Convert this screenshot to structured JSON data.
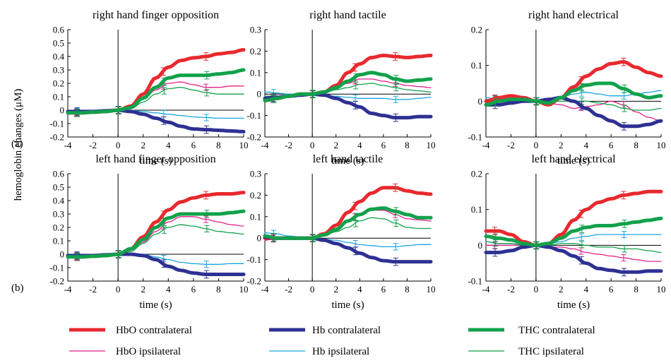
{
  "figure": {
    "ylabel": "hemoglobin changes (μM)",
    "xlabel": "time (s)",
    "row_labels": [
      "(a)",
      "(b)"
    ]
  },
  "legend": [
    {
      "label": "HbO contralateral",
      "color": "#e8292f",
      "width": 5
    },
    {
      "label": "Hb contralateral",
      "color": "#2e3192",
      "width": 5
    },
    {
      "label": "THC contralateral",
      "color": "#12a14b",
      "width": 5
    },
    {
      "label": "HbO ipsilateral",
      "color": "#e4208c",
      "width": 1.3
    },
    {
      "label": "Hb ipsilateral",
      "color": "#19a6de",
      "width": 1.3
    },
    {
      "label": "THC ipsilateral",
      "color": "#12a14b",
      "width": 1.3
    }
  ],
  "chart_data": [
    {
      "type": "line",
      "title": "right hand finger opposition",
      "xlim": [
        -4,
        10
      ],
      "ylim": [
        -0.2,
        0.6
      ],
      "yticks": [
        -0.2,
        -0.1,
        0,
        0.1,
        0.2,
        0.3,
        0.4,
        0.5,
        0.6
      ],
      "xticks": [
        -4,
        -2,
        0,
        2,
        4,
        6,
        8,
        10
      ],
      "x": [
        -4,
        -3,
        -2,
        -1,
        0,
        1,
        2,
        3,
        4,
        5,
        6,
        7,
        8,
        9,
        10
      ],
      "series": [
        {
          "name": "HbO contralateral",
          "values": [
            -0.02,
            -0.02,
            -0.015,
            -0.01,
            0,
            0.03,
            0.12,
            0.24,
            0.32,
            0.37,
            0.39,
            0.4,
            0.42,
            0.43,
            0.45
          ]
        },
        {
          "name": "Hb contralateral",
          "values": [
            -0.01,
            -0.01,
            -0.01,
            -0.005,
            0,
            -0.01,
            -0.03,
            -0.06,
            -0.09,
            -0.12,
            -0.14,
            -0.145,
            -0.15,
            -0.155,
            -0.16
          ]
        },
        {
          "name": "THC contralateral",
          "values": [
            -0.02,
            -0.02,
            -0.015,
            -0.01,
            0,
            0.02,
            0.09,
            0.17,
            0.24,
            0.26,
            0.26,
            0.26,
            0.27,
            0.28,
            0.3
          ]
        },
        {
          "name": "HbO ipsilateral",
          "values": [
            -0.02,
            -0.02,
            -0.015,
            -0.01,
            0,
            0.02,
            0.08,
            0.15,
            0.2,
            0.21,
            0.19,
            0.17,
            0.17,
            0.18,
            0.18
          ]
        },
        {
          "name": "Hb ipsilateral",
          "values": [
            -0.01,
            -0.01,
            -0.01,
            -0.005,
            0,
            0,
            -0.01,
            -0.02,
            -0.03,
            -0.04,
            -0.05,
            -0.055,
            -0.06,
            -0.06,
            -0.06
          ]
        },
        {
          "name": "THC ipsilateral",
          "values": [
            -0.02,
            -0.02,
            -0.015,
            -0.01,
            0,
            0.01,
            0.06,
            0.12,
            0.16,
            0.17,
            0.15,
            0.13,
            0.12,
            0.12,
            0.12
          ]
        }
      ]
    },
    {
      "type": "line",
      "title": "right hand tactile",
      "xlim": [
        -4,
        10
      ],
      "ylim": [
        -0.2,
        0.3
      ],
      "yticks": [
        -0.2,
        -0.1,
        0,
        0.1,
        0.2,
        0.3
      ],
      "xticks": [
        -4,
        -2,
        0,
        2,
        4,
        6,
        8,
        10
      ],
      "x": [
        -4,
        -3,
        -2,
        -1,
        0,
        1,
        2,
        3,
        4,
        5,
        6,
        7,
        8,
        9,
        10
      ],
      "series": [
        {
          "name": "HbO contralateral",
          "values": [
            -0.03,
            -0.02,
            -0.01,
            0,
            0,
            0.01,
            0.04,
            0.1,
            0.14,
            0.17,
            0.18,
            0.175,
            0.17,
            0.175,
            0.18
          ]
        },
        {
          "name": "Hb contralateral",
          "values": [
            -0.02,
            -0.015,
            -0.01,
            -0.005,
            0,
            -0.005,
            -0.02,
            -0.04,
            -0.06,
            -0.09,
            -0.1,
            -0.11,
            -0.11,
            -0.105,
            -0.105
          ]
        },
        {
          "name": "THC contralateral",
          "values": [
            -0.03,
            -0.02,
            -0.01,
            0,
            0,
            0.01,
            0.03,
            0.06,
            0.09,
            0.1,
            0.09,
            0.07,
            0.06,
            0.065,
            0.07
          ]
        },
        {
          "name": "HbO ipsilateral",
          "values": [
            -0.02,
            -0.02,
            -0.01,
            0,
            0,
            0.01,
            0.03,
            0.05,
            0.07,
            0.07,
            0.06,
            0.05,
            0.04,
            0.035,
            0.03
          ]
        },
        {
          "name": "Hb ipsilateral",
          "values": [
            0.01,
            0.005,
            0,
            0,
            0,
            -0.005,
            -0.01,
            -0.015,
            -0.02,
            -0.02,
            -0.02,
            -0.025,
            -0.025,
            -0.02,
            -0.015
          ]
        },
        {
          "name": "THC ipsilateral",
          "values": [
            -0.01,
            -0.01,
            -0.01,
            0,
            0,
            0.005,
            0.02,
            0.03,
            0.045,
            0.05,
            0.04,
            0.03,
            0.02,
            0.015,
            0.01
          ]
        }
      ]
    },
    {
      "type": "line",
      "title": "right hand electrical",
      "xlim": [
        -4,
        10
      ],
      "ylim": [
        -0.1,
        0.2
      ],
      "yticks": [
        -0.1,
        0,
        0.1,
        0.2
      ],
      "xticks": [
        -4,
        -2,
        0,
        2,
        4,
        6,
        8,
        10
      ],
      "x": [
        -4,
        -3,
        -2,
        -1,
        0,
        1,
        2,
        3,
        4,
        5,
        6,
        7,
        8,
        9,
        10
      ],
      "series": [
        {
          "name": "HbO contralateral",
          "values": [
            0,
            0.01,
            0.015,
            0.01,
            0,
            -0.01,
            0.01,
            0.04,
            0.07,
            0.09,
            0.105,
            0.11,
            0.095,
            0.08,
            0.07
          ]
        },
        {
          "name": "Hb contralateral",
          "values": [
            -0.01,
            -0.01,
            -0.005,
            0,
            0,
            0.005,
            0.01,
            0,
            -0.02,
            -0.04,
            -0.055,
            -0.07,
            -0.07,
            -0.065,
            -0.055
          ]
        },
        {
          "name": "THC contralateral",
          "values": [
            -0.01,
            0,
            0.005,
            0.005,
            0,
            -0.005,
            0.01,
            0.03,
            0.045,
            0.05,
            0.05,
            0.035,
            0.02,
            0.01,
            0.015
          ]
        },
        {
          "name": "HbO ipsilateral",
          "values": [
            0,
            0,
            0.005,
            0.005,
            0,
            -0.005,
            -0.01,
            -0.02,
            -0.015,
            -0.01,
            0,
            -0.01,
            -0.03,
            -0.045,
            -0.055
          ]
        },
        {
          "name": "Hb ipsilateral",
          "values": [
            0.01,
            0.005,
            0,
            0,
            0,
            0.005,
            0.01,
            0.02,
            0.025,
            0.02,
            0.015,
            0.015,
            0.02,
            0.025,
            0.03
          ]
        },
        {
          "name": "THC ipsilateral",
          "values": [
            0.005,
            0.005,
            0.005,
            0.005,
            0,
            0,
            0,
            0,
            0,
            -0.005,
            -0.01,
            -0.02,
            -0.025,
            -0.025,
            -0.02
          ]
        }
      ]
    },
    {
      "type": "line",
      "title": "left hand finger opposition",
      "xlim": [
        -4,
        10
      ],
      "ylim": [
        -0.2,
        0.6
      ],
      "yticks": [
        -0.2,
        -0.1,
        0,
        0.1,
        0.2,
        0.3,
        0.4,
        0.5,
        0.6
      ],
      "xticks": [
        -4,
        -2,
        0,
        2,
        4,
        6,
        8,
        10
      ],
      "x": [
        -4,
        -3,
        -2,
        -1,
        0,
        1,
        2,
        3,
        4,
        5,
        6,
        7,
        8,
        9,
        10
      ],
      "series": [
        {
          "name": "HbO contralateral",
          "values": [
            -0.01,
            -0.02,
            -0.015,
            -0.01,
            0,
            0.04,
            0.13,
            0.24,
            0.33,
            0.39,
            0.42,
            0.44,
            0.45,
            0.45,
            0.46
          ]
        },
        {
          "name": "Hb contralateral",
          "values": [
            -0.01,
            -0.01,
            -0.01,
            -0.005,
            0,
            0,
            -0.01,
            -0.04,
            -0.09,
            -0.12,
            -0.14,
            -0.15,
            -0.15,
            -0.15,
            -0.15
          ]
        },
        {
          "name": "THC contralateral",
          "values": [
            -0.02,
            -0.02,
            -0.015,
            -0.01,
            0,
            0.04,
            0.11,
            0.2,
            0.27,
            0.3,
            0.3,
            0.3,
            0.3,
            0.31,
            0.32
          ]
        },
        {
          "name": "HbO ipsilateral",
          "values": [
            -0.02,
            -0.02,
            -0.015,
            -0.01,
            0,
            0.03,
            0.09,
            0.17,
            0.24,
            0.28,
            0.28,
            0.26,
            0.24,
            0.22,
            0.21
          ]
        },
        {
          "name": "Hb ipsilateral",
          "values": [
            -0.01,
            -0.01,
            -0.01,
            -0.005,
            0,
            0.005,
            0,
            -0.02,
            -0.04,
            -0.06,
            -0.07,
            -0.075,
            -0.075,
            -0.07,
            -0.07
          ]
        },
        {
          "name": "THC ipsilateral",
          "values": [
            -0.02,
            -0.02,
            -0.015,
            -0.01,
            0,
            0.02,
            0.08,
            0.15,
            0.2,
            0.22,
            0.21,
            0.19,
            0.17,
            0.16,
            0.15
          ]
        }
      ]
    },
    {
      "type": "line",
      "title": "left hand tactile",
      "xlim": [
        -4,
        10
      ],
      "ylim": [
        -0.2,
        0.3
      ],
      "yticks": [
        -0.2,
        -0.1,
        0,
        0.1,
        0.2,
        0.3
      ],
      "xticks": [
        -4,
        -2,
        0,
        2,
        4,
        6,
        8,
        10
      ],
      "x": [
        -4,
        -3,
        -2,
        -1,
        0,
        1,
        2,
        3,
        4,
        5,
        6,
        7,
        8,
        9,
        10
      ],
      "series": [
        {
          "name": "HbO contralateral",
          "values": [
            0,
            0,
            0,
            0,
            0,
            0.02,
            0.06,
            0.12,
            0.17,
            0.21,
            0.235,
            0.235,
            0.22,
            0.21,
            0.205
          ]
        },
        {
          "name": "Hb contralateral",
          "values": [
            0.005,
            0,
            0,
            0,
            0,
            -0.01,
            -0.025,
            -0.045,
            -0.07,
            -0.09,
            -0.105,
            -0.11,
            -0.11,
            -0.11,
            -0.11
          ]
        },
        {
          "name": "THC contralateral",
          "values": [
            0.01,
            0,
            0,
            0,
            0,
            0.015,
            0.04,
            0.08,
            0.11,
            0.135,
            0.14,
            0.125,
            0.11,
            0.095,
            0.095
          ]
        },
        {
          "name": "HbO ipsilateral",
          "values": [
            -0.01,
            0,
            0,
            0,
            0,
            0.015,
            0.04,
            0.08,
            0.11,
            0.13,
            0.13,
            0.11,
            0.09,
            0.085,
            0.08
          ]
        },
        {
          "name": "Hb ipsilateral",
          "values": [
            0.025,
            0.02,
            0.01,
            0.005,
            0,
            -0.005,
            -0.01,
            -0.02,
            -0.03,
            -0.035,
            -0.04,
            -0.04,
            -0.035,
            -0.03,
            -0.03
          ]
        },
        {
          "name": "THC ipsilateral",
          "values": [
            0.01,
            0.005,
            0,
            0,
            0,
            0.01,
            0.03,
            0.05,
            0.08,
            0.095,
            0.09,
            0.07,
            0.05,
            0.045,
            0.045
          ]
        }
      ]
    },
    {
      "type": "line",
      "title": "left hand electrical",
      "xlim": [
        -4,
        10
      ],
      "ylim": [
        -0.1,
        0.2
      ],
      "yticks": [
        -0.1,
        0,
        0.1,
        0.2
      ],
      "xticks": [
        -4,
        -2,
        0,
        2,
        4,
        6,
        8,
        10
      ],
      "x": [
        -4,
        -3,
        -2,
        -1,
        0,
        1,
        2,
        3,
        4,
        5,
        6,
        7,
        8,
        9,
        10
      ],
      "series": [
        {
          "name": "HbO contralateral",
          "values": [
            0.04,
            0.04,
            0.03,
            0.01,
            0,
            0.005,
            0.03,
            0.07,
            0.1,
            0.12,
            0.13,
            0.14,
            0.145,
            0.15,
            0.15
          ]
        },
        {
          "name": "Hb contralateral",
          "values": [
            -0.02,
            -0.02,
            -0.015,
            -0.005,
            0,
            -0.005,
            -0.015,
            -0.03,
            -0.05,
            -0.065,
            -0.07,
            -0.075,
            -0.075,
            -0.072,
            -0.072
          ]
        },
        {
          "name": "THC contralateral",
          "values": [
            0.025,
            0.02,
            0.015,
            0.005,
            0,
            0.005,
            0.02,
            0.04,
            0.05,
            0.055,
            0.055,
            0.06,
            0.065,
            0.07,
            0.075
          ]
        },
        {
          "name": "HbO ipsilateral",
          "values": [
            0,
            0,
            0,
            0,
            0,
            -0.005,
            -0.005,
            -0.01,
            -0.02,
            -0.025,
            -0.03,
            -0.035,
            -0.04,
            -0.045,
            -0.045
          ]
        },
        {
          "name": "Hb ipsilateral",
          "values": [
            0.01,
            0.005,
            0.005,
            0,
            0,
            0.005,
            0.01,
            0.02,
            0.025,
            0.03,
            0.03,
            0.03,
            0.03,
            0.03,
            0.03
          ]
        },
        {
          "name": "THC ipsilateral",
          "values": [
            0.01,
            0.005,
            0.005,
            0,
            0,
            0,
            0.005,
            0.005,
            0,
            -0.005,
            -0.005,
            -0.01,
            -0.01,
            -0.015,
            -0.02
          ]
        }
      ]
    }
  ]
}
